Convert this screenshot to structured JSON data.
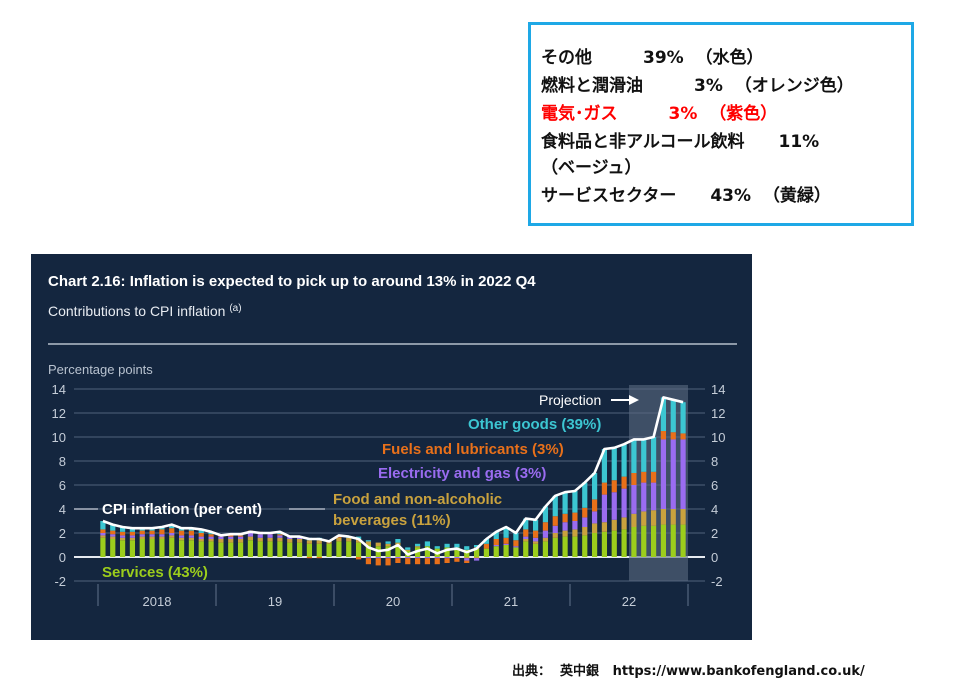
{
  "notes": {
    "lines": [
      "その他　　　39%  （水色）",
      "燃料と潤滑油　　　3%  （オレンジ色）",
      "電気･ガス　　　3%  （紫色）",
      "食料品と非アルコール飲料　　11%",
      "（ベージュ）",
      "サービスセクター　　43%  （黄緑）"
    ],
    "highlight_color": "#ff0000",
    "border_color": "#1ea8e6"
  },
  "source": "出典：  英中銀   https://www.bankofengland.co.uk/",
  "chart_data": {
    "type": "bar",
    "stacked": true,
    "title": "Chart 2.16: Inflation is expected to pick up to around 13% in 2022 Q4",
    "subtitle": "Contributions to CPI inflation",
    "subtitle_note": "(a)",
    "ylabel": "Percentage points",
    "ylim": [
      -2,
      14
    ],
    "yticks": [
      "14",
      "12",
      "10",
      "8",
      "6",
      "4",
      "2",
      "0",
      "-2"
    ],
    "year_labels": [
      "2018",
      "19",
      "20",
      "21",
      "22"
    ],
    "frequency": "monthly",
    "period": [
      "2018-01",
      "2022-12"
    ],
    "grid": true,
    "projection_label": "Projection",
    "projection_start": "2022-07",
    "background": "#14263f",
    "series": [
      {
        "name": "Services (43%)",
        "color": "#9ccd1c",
        "values": [
          1.6,
          1.5,
          1.4,
          1.4,
          1.5,
          1.5,
          1.5,
          1.6,
          1.4,
          1.4,
          1.3,
          1.3,
          1.2,
          1.2,
          1.2,
          1.4,
          1.3,
          1.3,
          1.3,
          1.2,
          1.2,
          1.1,
          1.1,
          1.1,
          1.3,
          1.3,
          1.2,
          1.0,
          0.9,
          0.9,
          1.0,
          0.5,
          0.8,
          0.9,
          0.7,
          0.8,
          0.8,
          0.6,
          0.7,
          0.7,
          0.9,
          1.0,
          0.8,
          1.3,
          1.1,
          1.3,
          1.6,
          1.7,
          1.7,
          1.8,
          2.0,
          2.1,
          2.2,
          2.3,
          2.5,
          2.6,
          2.6,
          2.7,
          2.7,
          2.7
        ]
      },
      {
        "name": "Food and non-alcoholic beverages (11%)",
        "label_lines": [
          "Food and non-alcoholic",
          "beverages (11%)"
        ],
        "color": "#c9a23e",
        "values": [
          0.2,
          0.2,
          0.2,
          0.2,
          0.2,
          0.2,
          0.2,
          0.2,
          0.2,
          0.2,
          0.2,
          0.2,
          0.3,
          0.3,
          0.3,
          0.3,
          0.3,
          0.3,
          0.3,
          0.3,
          0.3,
          0.3,
          0.3,
          0.3,
          0.3,
          0.3,
          0.3,
          0.3,
          0.3,
          0.2,
          0.2,
          0.1,
          0.1,
          0.0,
          0.0,
          0.0,
          0.0,
          -0.1,
          -0.1,
          0.0,
          0.0,
          0.0,
          0.0,
          0.2,
          0.2,
          0.3,
          0.4,
          0.5,
          0.6,
          0.7,
          0.8,
          0.8,
          0.9,
          1.0,
          1.1,
          1.2,
          1.3,
          1.3,
          1.3,
          1.3
        ]
      },
      {
        "name": "Electricity and gas (3%)",
        "color": "#9a6cf0",
        "values": [
          0.2,
          0.2,
          0.2,
          0.2,
          0.2,
          0.2,
          0.2,
          0.2,
          0.2,
          0.2,
          0.2,
          0.2,
          0.2,
          0.2,
          0.2,
          0.3,
          0.3,
          0.3,
          0.2,
          0.2,
          0.1,
          0.0,
          0.0,
          0.0,
          0.0,
          0.0,
          0.0,
          -0.1,
          -0.1,
          -0.1,
          -0.1,
          -0.1,
          -0.1,
          -0.1,
          -0.1,
          -0.1,
          -0.1,
          -0.2,
          -0.2,
          0.0,
          0.1,
          0.1,
          0.1,
          0.2,
          0.3,
          0.6,
          0.6,
          0.7,
          0.7,
          0.8,
          1.0,
          2.3,
          2.3,
          2.4,
          2.4,
          2.4,
          2.3,
          5.8,
          5.8,
          5.8
        ]
      },
      {
        "name": "Fuels and lubricants (3%)",
        "color": "#e8701a",
        "values": [
          0.3,
          0.3,
          0.3,
          0.3,
          0.3,
          0.3,
          0.4,
          0.4,
          0.4,
          0.4,
          0.3,
          0.2,
          0.1,
          0.1,
          0.1,
          0.2,
          0.2,
          0.1,
          0.1,
          0.0,
          0.0,
          -0.1,
          -0.1,
          0.0,
          0.1,
          0.0,
          -0.2,
          -0.5,
          -0.6,
          -0.6,
          -0.4,
          -0.5,
          -0.5,
          -0.5,
          -0.5,
          -0.4,
          -0.3,
          -0.2,
          0.1,
          0.4,
          0.5,
          0.5,
          0.5,
          0.6,
          0.6,
          0.7,
          0.8,
          0.7,
          0.7,
          0.8,
          1.0,
          1.0,
          1.0,
          1.0,
          1.0,
          0.9,
          0.9,
          0.7,
          0.6,
          0.5
        ]
      },
      {
        "name": "Other goods (39%)",
        "color": "#3cc6d2",
        "values": [
          0.7,
          0.5,
          0.4,
          0.3,
          0.2,
          0.2,
          0.2,
          0.3,
          0.2,
          0.2,
          0.3,
          0.2,
          0.0,
          0.1,
          0.1,
          0.0,
          0.0,
          0.0,
          0.2,
          0.1,
          0.1,
          0.2,
          0.2,
          0.0,
          0.1,
          0.1,
          0.2,
          0.1,
          0.0,
          0.2,
          0.3,
          0.2,
          0.2,
          0.4,
          0.2,
          0.3,
          0.3,
          0.3,
          0.2,
          0.4,
          0.6,
          0.9,
          0.6,
          0.9,
          0.9,
          1.3,
          1.7,
          1.8,
          1.8,
          2.1,
          2.2,
          2.8,
          2.7,
          2.7,
          2.8,
          2.7,
          2.9,
          2.8,
          2.7,
          2.6
        ]
      }
    ],
    "line": {
      "name": "CPI inflation (per cent)",
      "color": "#ffffff",
      "values": [
        3.0,
        2.7,
        2.5,
        2.4,
        2.4,
        2.4,
        2.5,
        2.7,
        2.4,
        2.4,
        2.3,
        2.1,
        1.8,
        1.9,
        1.9,
        2.1,
        2.0,
        2.0,
        2.1,
        1.7,
        1.7,
        1.5,
        1.5,
        1.3,
        1.8,
        1.7,
        1.5,
        0.8,
        0.5,
        0.6,
        1.0,
        0.2,
        0.5,
        0.7,
        0.3,
        0.6,
        0.7,
        0.4,
        0.7,
        1.5,
        2.1,
        2.5,
        2.0,
        3.2,
        3.1,
        4.2,
        5.1,
        5.4,
        5.5,
        6.2,
        7.0,
        9.0,
        9.1,
        9.4,
        9.8,
        9.8,
        10.0,
        13.3,
        13.1,
        12.9
      ]
    }
  }
}
